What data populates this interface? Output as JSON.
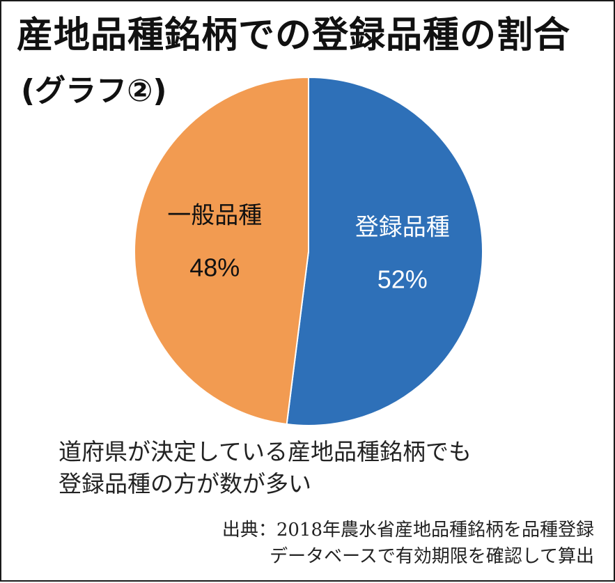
{
  "title": "産地品種銘柄での登録品種の割合",
  "subtitle": "(グラフ②)",
  "chart_data": {
    "type": "pie",
    "title": "産地品種銘柄での登録品種の割合",
    "subtitle": "(グラフ②)",
    "slices": [
      {
        "label": "登録品種",
        "value": 52,
        "value_label": "52%",
        "color": "#2e70b8",
        "text_color": "#ffffff"
      },
      {
        "label": "一般品種",
        "value": 48,
        "value_label": "48%",
        "color": "#f29b51",
        "text_color": "#111111"
      }
    ]
  },
  "caption": {
    "line1": "道府県が決定している産地品種銘柄でも",
    "line2": "登録品種の方が数が多い"
  },
  "source": {
    "line1": "出典：2018年農水省産地品種銘柄を品種登録",
    "line2": "データベースで有効期限を確認して算出"
  }
}
